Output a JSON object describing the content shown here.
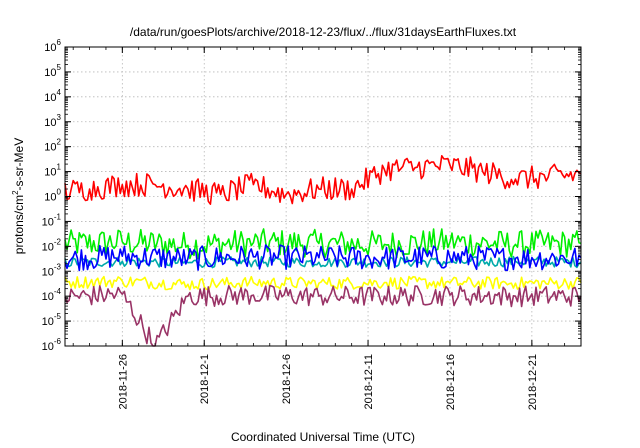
{
  "chart_data": {
    "type": "line",
    "title": "/data/run/goesPlots/archive/2018-12-23/flux/../flux/31daysEarthFluxes.txt",
    "xlabel": "Coordinated Universal Time (UTC)",
    "ylabel": {
      "prefix": "protons/cm",
      "sup": "2",
      "suffix": "-s-sr-MeV"
    },
    "y_scale": "log",
    "ylim": [
      1e-06,
      1000000.0
    ],
    "xlim": [
      "2018-11-22T12:00",
      "2018-12-24T00:00"
    ],
    "grid": true,
    "y_ticks": [
      {
        "base": "10",
        "exp": "-6"
      },
      {
        "base": "10",
        "exp": "-5"
      },
      {
        "base": "10",
        "exp": "-4"
      },
      {
        "base": "10",
        "exp": "-3"
      },
      {
        "base": "10",
        "exp": "-2"
      },
      {
        "base": "10",
        "exp": "-1"
      },
      {
        "base": "10",
        "exp": "0"
      },
      {
        "base": "10",
        "exp": "1"
      },
      {
        "base": "10",
        "exp": "2"
      },
      {
        "base": "10",
        "exp": "3"
      },
      {
        "base": "10",
        "exp": "4"
      },
      {
        "base": "10",
        "exp": "5"
      },
      {
        "base": "10",
        "exp": "6"
      }
    ],
    "x_ticks": [
      "2018-11-26",
      "2018-12-1",
      "2018-12-6",
      "2018-12-11",
      "2018-12-16",
      "2018-12-21"
    ],
    "x_tick_dates": [
      "2018-11-26",
      "2018-12-01",
      "2018-12-06",
      "2018-12-11",
      "2018-12-16",
      "2018-12-21"
    ],
    "series": [
      {
        "color": "#ff0000",
        "x": [
          "2018-11-22",
          "2018-11-24",
          "2018-11-26",
          "2018-11-28",
          "2018-11-30",
          "2018-12-02",
          "2018-12-04",
          "2018-12-06",
          "2018-12-08",
          "2018-12-10",
          "2018-12-12",
          "2018-12-14",
          "2018-12-16",
          "2018-12-18",
          "2018-12-20",
          "2018-12-22",
          "2018-12-24"
        ],
        "y": [
          1.5,
          2,
          3,
          3,
          2,
          1.2,
          3,
          1.2,
          2,
          2,
          12,
          15,
          18,
          10,
          5,
          6,
          8
        ]
      },
      {
        "color": "#00ee00",
        "x": [
          "2018-11-22",
          "2018-11-26",
          "2018-11-30",
          "2018-12-04",
          "2018-12-08",
          "2018-12-12",
          "2018-12-16",
          "2018-12-20",
          "2018-12-24"
        ],
        "y": [
          0.012,
          0.015,
          0.011,
          0.014,
          0.013,
          0.012,
          0.015,
          0.012,
          0.013
        ]
      },
      {
        "color": "#00aaaa",
        "x": [
          "2018-11-22",
          "2018-11-26",
          "2018-11-30",
          "2018-12-04",
          "2018-12-08",
          "2018-12-12",
          "2018-12-16",
          "2018-12-20",
          "2018-12-24"
        ],
        "y": [
          0.0022,
          0.0025,
          0.0022,
          0.0024,
          0.0023,
          0.0024,
          0.0023,
          0.0025,
          0.0023
        ]
      },
      {
        "color": "#0000ff",
        "x": [
          "2018-11-22",
          "2018-11-26",
          "2018-11-30",
          "2018-12-04",
          "2018-12-08",
          "2018-12-12",
          "2018-12-16",
          "2018-12-20",
          "2018-12-24"
        ],
        "y": [
          0.003,
          0.004,
          0.0032,
          0.0038,
          0.0035,
          0.0034,
          0.0036,
          0.0033,
          0.0035
        ]
      },
      {
        "color": "#ffff00",
        "x": [
          "2018-11-22",
          "2018-11-26",
          "2018-11-30",
          "2018-12-04",
          "2018-12-08",
          "2018-12-12",
          "2018-12-16",
          "2018-12-20",
          "2018-12-24"
        ],
        "y": [
          0.00035,
          0.0004,
          0.0003,
          0.00035,
          0.00033,
          0.00035,
          0.00034,
          0.00033,
          0.00034
        ]
      },
      {
        "color": "#993366",
        "x": [
          "2018-11-22",
          "2018-11-26",
          "2018-11-28",
          "2018-11-30",
          "2018-12-04",
          "2018-12-08",
          "2018-12-12",
          "2018-12-16",
          "2018-12-20",
          "2018-12-24"
        ],
        "y": [
          9e-05,
          0.00012,
          1e-06,
          0.0001,
          0.00011,
          0.0001,
          0.0001,
          0.00011,
          0.0001,
          0.0001
        ]
      }
    ]
  }
}
